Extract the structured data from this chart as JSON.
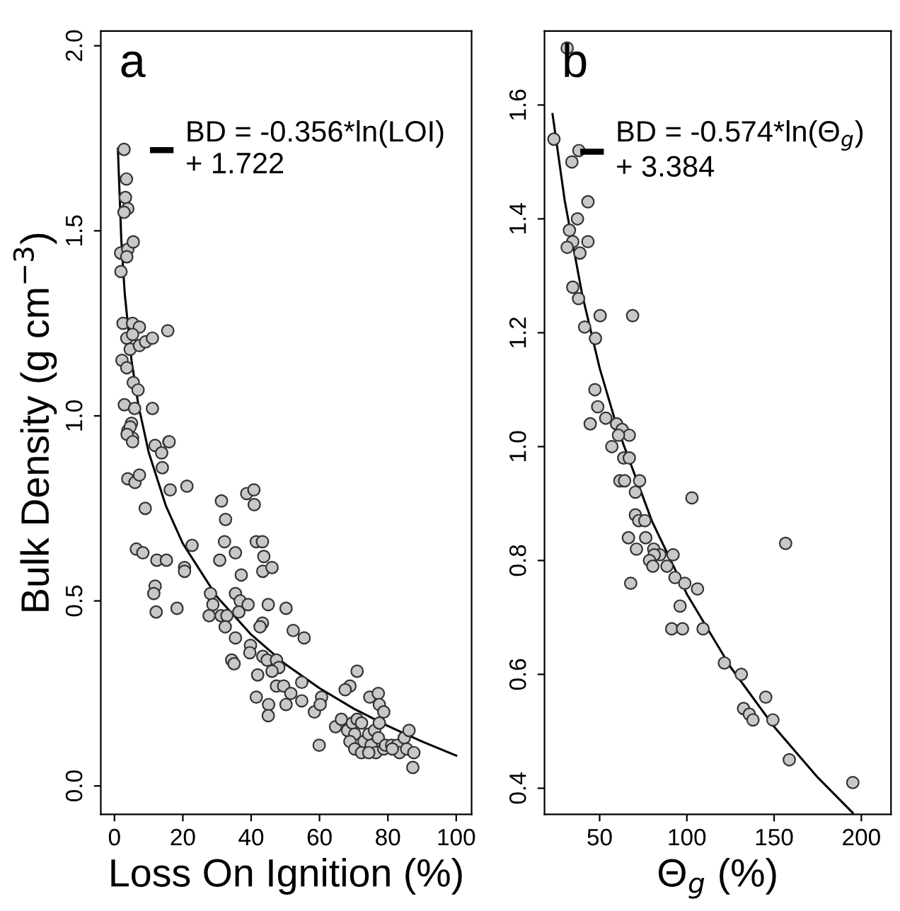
{
  "chart_data": [
    {
      "type": "scatter",
      "title": "a",
      "xlabel": "Loss On Ignition (%)",
      "ylabel": "Bulk Density (g cm$^{−3}$)",
      "xlim": [
        -4,
        104.5
      ],
      "ylim": [
        -0.077,
        2.04
      ],
      "xticks": [
        0,
        20,
        40,
        60,
        80,
        100
      ],
      "yticks": [
        {
          "value": 0,
          "label": "0.0"
        },
        0.5,
        {
          "value": 1,
          "label": "1.0"
        },
        1.5,
        {
          "value": 2,
          "label": "2.0"
        }
      ],
      "grid": false,
      "legend": "top right",
      "marker": "circle",
      "series": [
        {
          "color": "#c8c8c8",
          "x": [
            2.8,
            3.5,
            3.2,
            3.9,
            2.8,
            1.8,
            3.9,
            5.5,
            3.6,
            1.9,
            2.5,
            5.3,
            7.3,
            3.6,
            5.3,
            4.6,
            7.3,
            9.1,
            11.1,
            15.6,
            2.2,
            3.6,
            5.5,
            6.9,
            2.9,
            5.9,
            11.1,
            4.98,
            3.9,
            5.3,
            11.9,
            15.9,
            4.6,
            3.7,
            5.3,
            13.8,
            16.0,
            14.0,
            3.9,
            6.0,
            7.3,
            16.3,
            21.2,
            9.0,
            6.4,
            8.3,
            12.4,
            15.2,
            22.7,
            20.5,
            20.5,
            11.9,
            11.5,
            12.2,
            18.3,
            31.3,
            32.5,
            35.4,
            30.8,
            32.2,
            38.7,
            40.8,
            40.9,
            41.5,
            43.3,
            43.7,
            43.4,
            46.1,
            37.1,
            28.1,
            35.4,
            28.8,
            36.8,
            39.1,
            36.4,
            45.0,
            50.2,
            27.7,
            31.2,
            32.9,
            32.4,
            43.3,
            42.6,
            52.3,
            55.5,
            35.4,
            39.8,
            39.6,
            34.3,
            35.0,
            43.4,
            44.7,
            47.4,
            48.1,
            46.1,
            41.9,
            47.4,
            49.5,
            51.6,
            54.8,
            41.5,
            45.1,
            50.2,
            54.8,
            45.0,
            60.6,
            58.5,
            60.2,
            71.0,
            68.9,
            67.5,
            74.7,
            77.2,
            77.5,
            78.8,
            59.9,
            64.7,
            66.4,
            68.2,
            69.6,
            71.0,
            72.3,
            70.3,
            68.9,
            70.3,
            72.3,
            73.0,
            74.4,
            75.1,
            76.1,
            77.5,
            77.2,
            76.5,
            78.8,
            79.3,
            81.1,
            82.7,
            83.4,
            84.8,
            85.5,
            86.2,
            87.6,
            87.3,
            81.3,
            74.4
          ],
          "values": [
            1.72,
            1.64,
            1.59,
            1.56,
            1.55,
            1.44,
            1.45,
            1.47,
            1.43,
            1.39,
            1.25,
            1.25,
            1.24,
            1.21,
            1.22,
            1.18,
            1.19,
            1.2,
            1.21,
            1.23,
            1.15,
            1.13,
            1.09,
            1.07,
            1.03,
            1.02,
            1.02,
            0.98,
            0.96,
            0.94,
            0.92,
            0.93,
            0.97,
            0.95,
            0.93,
            0.9,
            0.93,
            0.86,
            0.83,
            0.82,
            0.84,
            0.8,
            0.81,
            0.75,
            0.64,
            0.63,
            0.61,
            0.61,
            0.65,
            0.59,
            0.58,
            0.54,
            0.52,
            0.47,
            0.48,
            0.77,
            0.72,
            0.63,
            0.61,
            0.66,
            0.79,
            0.8,
            0.76,
            0.66,
            0.66,
            0.62,
            0.58,
            0.59,
            0.57,
            0.52,
            0.52,
            0.49,
            0.5,
            0.49,
            0.47,
            0.49,
            0.48,
            0.46,
            0.46,
            0.46,
            0.43,
            0.44,
            0.43,
            0.42,
            0.4,
            0.4,
            0.38,
            0.36,
            0.34,
            0.33,
            0.35,
            0.34,
            0.34,
            0.32,
            0.31,
            0.3,
            0.27,
            0.27,
            0.25,
            0.28,
            0.24,
            0.22,
            0.22,
            0.23,
            0.19,
            0.24,
            0.2,
            0.22,
            0.31,
            0.27,
            0.26,
            0.24,
            0.25,
            0.22,
            0.2,
            0.11,
            0.16,
            0.18,
            0.15,
            0.17,
            0.18,
            0.17,
            0.14,
            0.12,
            0.1,
            0.09,
            0.12,
            0.14,
            0.11,
            0.15,
            0.17,
            0.13,
            0.09,
            0.1,
            0.11,
            0.11,
            0.11,
            0.09,
            0.13,
            0.1,
            0.15,
            0.09,
            0.05,
            0.1,
            0.09
          ]
        },
        {
          "type": "line",
          "name": "BD = -0.356*ln(LOI)\n+ 1.722",
          "color": "#000000",
          "line_style": "solid",
          "marker": "none",
          "x": [
            1,
            2,
            3,
            5,
            7,
            10,
            15,
            20,
            30,
            40,
            50,
            60,
            70,
            80,
            90,
            100
          ],
          "values": [
            1.722,
            1.475,
            1.331,
            1.149,
            1.029,
            0.902,
            0.758,
            0.655,
            0.511,
            0.409,
            0.329,
            0.264,
            0.209,
            0.162,
            0.12,
            0.082
          ]
        }
      ]
    },
    {
      "type": "scatter",
      "title": "b",
      "xlabel": "Θ$_{g}$ (%)",
      "xlim": [
        18.4,
        217
      ],
      "ylim": [
        0.354,
        1.73
      ],
      "xticks": [
        50,
        100,
        150,
        200
      ],
      "yticks": [
        0.4,
        0.6,
        0.8,
        {
          "value": 1,
          "label": "1.0"
        },
        1.2,
        1.4,
        1.6
      ],
      "grid": false,
      "legend": "top right",
      "marker": "circle",
      "series": [
        {
          "color": "#c8c8c8",
          "x": [
            31.4,
            23.8,
            38.1,
            34.1,
            43.3,
            37.3,
            32.7,
            34.6,
            43.3,
            31.4,
            38.7,
            34.6,
            37.9,
            41.4,
            50.3,
            68.9,
            47.6,
            47.3,
            48.9,
            53.5,
            44.6,
            59.7,
            62.9,
            67.0,
            60.8,
            57.0,
            63.8,
            67.0,
            61.6,
            64.3,
            72.9,
            70.5,
            102.9,
            70.5,
            72.4,
            75.9,
            76.4,
            66.5,
            71.1,
            81.0,
            84.5,
            81.3,
            92.1,
            156.6,
            78.6,
            80.5,
            88.6,
            93.2,
            67.8,
            98.8,
            106.1,
            96.1,
            91.3,
            97.5,
            109.3,
            121.5,
            131.2,
            145.2,
            132.5,
            135.8,
            137.9,
            149.3,
            158.7,
            195.1
          ],
          "values": [
            1.7,
            1.54,
            1.52,
            1.5,
            1.43,
            1.4,
            1.38,
            1.36,
            1.36,
            1.35,
            1.34,
            1.28,
            1.26,
            1.21,
            1.23,
            1.23,
            1.19,
            1.1,
            1.07,
            1.05,
            1.04,
            1.04,
            1.03,
            1.02,
            1.02,
            1.0,
            0.98,
            0.98,
            0.94,
            0.94,
            0.94,
            0.92,
            0.91,
            0.88,
            0.87,
            0.87,
            0.84,
            0.84,
            0.82,
            0.82,
            0.81,
            0.81,
            0.81,
            0.83,
            0.8,
            0.79,
            0.79,
            0.77,
            0.76,
            0.76,
            0.75,
            0.72,
            0.68,
            0.68,
            0.68,
            0.62,
            0.6,
            0.56,
            0.54,
            0.53,
            0.52,
            0.52,
            0.45,
            0.41
          ]
        },
        {
          "type": "line",
          "name": "BD = -0.574*ln(Θ$_{g}$)\n+ 3.384",
          "color": "#000000",
          "line_style": "solid",
          "marker": "none",
          "x": [
            23,
            30,
            40,
            50,
            60,
            80,
            100,
            125,
            150,
            175,
            195
          ],
          "values": [
            1.584,
            1.432,
            1.267,
            1.138,
            1.034,
            0.869,
            0.741,
            0.613,
            0.508,
            0.419,
            0.357
          ]
        }
      ]
    }
  ]
}
